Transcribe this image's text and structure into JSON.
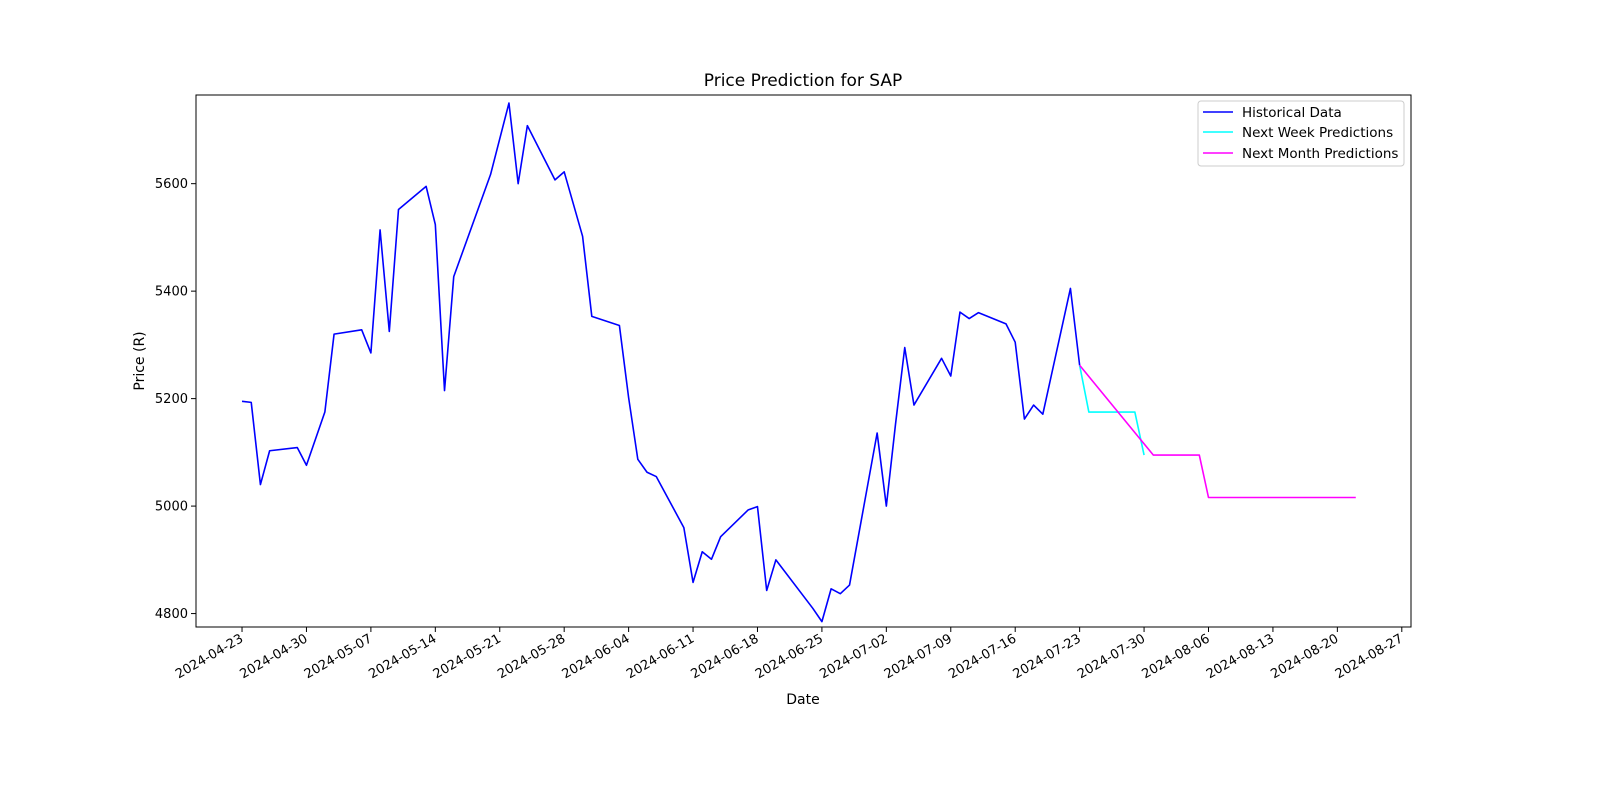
{
  "chart_data": {
    "type": "line",
    "title": "Price Prediction for SAP",
    "xlabel": "Date",
    "ylabel": "Price (R)",
    "xlim": [
      "2024-04-18",
      "2024-08-28"
    ],
    "ylim": [
      4775,
      5765
    ],
    "x_ticks": [
      "2024-04-23",
      "2024-04-30",
      "2024-05-07",
      "2024-05-14",
      "2024-05-21",
      "2024-05-28",
      "2024-06-04",
      "2024-06-11",
      "2024-06-18",
      "2024-06-25",
      "2024-07-02",
      "2024-07-09",
      "2024-07-16",
      "2024-07-23",
      "2024-07-30",
      "2024-08-06",
      "2024-08-13",
      "2024-08-20",
      "2024-08-27"
    ],
    "y_ticks": [
      4800,
      5000,
      5200,
      5400,
      5600
    ],
    "grid": false,
    "legend_position": "top-right",
    "series": [
      {
        "name": "Historical Data",
        "color": "#0000ff",
        "x": [
          "2024-04-23",
          "2024-04-24",
          "2024-04-25",
          "2024-04-26",
          "2024-04-29",
          "2024-04-30",
          "2024-05-02",
          "2024-05-03",
          "2024-05-06",
          "2024-05-07",
          "2024-05-08",
          "2024-05-09",
          "2024-05-10",
          "2024-05-13",
          "2024-05-14",
          "2024-05-15",
          "2024-05-16",
          "2024-05-20",
          "2024-05-22",
          "2024-05-23",
          "2024-05-24",
          "2024-05-27",
          "2024-05-28",
          "2024-05-30",
          "2024-05-31",
          "2024-06-03",
          "2024-06-04",
          "2024-06-05",
          "2024-06-06",
          "2024-06-07",
          "2024-06-10",
          "2024-06-11",
          "2024-06-12",
          "2024-06-13",
          "2024-06-14",
          "2024-06-17",
          "2024-06-18",
          "2024-06-19",
          "2024-06-20",
          "2024-06-24",
          "2024-06-25",
          "2024-06-26",
          "2024-06-27",
          "2024-06-28",
          "2024-07-01",
          "2024-07-02",
          "2024-07-03",
          "2024-07-04",
          "2024-07-05",
          "2024-07-08",
          "2024-07-09",
          "2024-07-10",
          "2024-07-11",
          "2024-07-12",
          "2024-07-15",
          "2024-07-16",
          "2024-07-17",
          "2024-07-18",
          "2024-07-19",
          "2024-07-22",
          "2024-07-23"
        ],
        "values": [
          5195,
          5193,
          5040,
          5103,
          5109,
          5076,
          5175,
          5320,
          5328,
          5285,
          5514,
          5325,
          5552,
          5595,
          5524,
          5215,
          5427,
          5617,
          5750,
          5600,
          5708,
          5607,
          5622,
          5502,
          5353,
          5336,
          5202,
          5087,
          5063,
          5055,
          4960,
          4858,
          4915,
          4901,
          4943,
          4993,
          4999,
          4843,
          4900,
          4810,
          4785,
          4846,
          4837,
          4853,
          5136,
          5000,
          5153,
          5295,
          5188,
          5275,
          5242,
          5361,
          5349,
          5360,
          5339,
          5305,
          5162,
          5188,
          5171,
          5405,
          5262
        ]
      },
      {
        "name": "Next Week Predictions",
        "color": "#00ffff",
        "x": [
          "2024-07-23",
          "2024-07-24",
          "2024-07-25",
          "2024-07-26",
          "2024-07-29",
          "2024-07-30"
        ],
        "values": [
          5262,
          5175,
          5175,
          5175,
          5175,
          5095
        ]
      },
      {
        "name": "Next Month Predictions",
        "color": "#ff00ff",
        "x": [
          "2024-07-23",
          "2024-07-31",
          "2024-08-05",
          "2024-08-06",
          "2024-08-22"
        ],
        "values": [
          5262,
          5095,
          5095,
          5016,
          5016
        ]
      }
    ]
  }
}
